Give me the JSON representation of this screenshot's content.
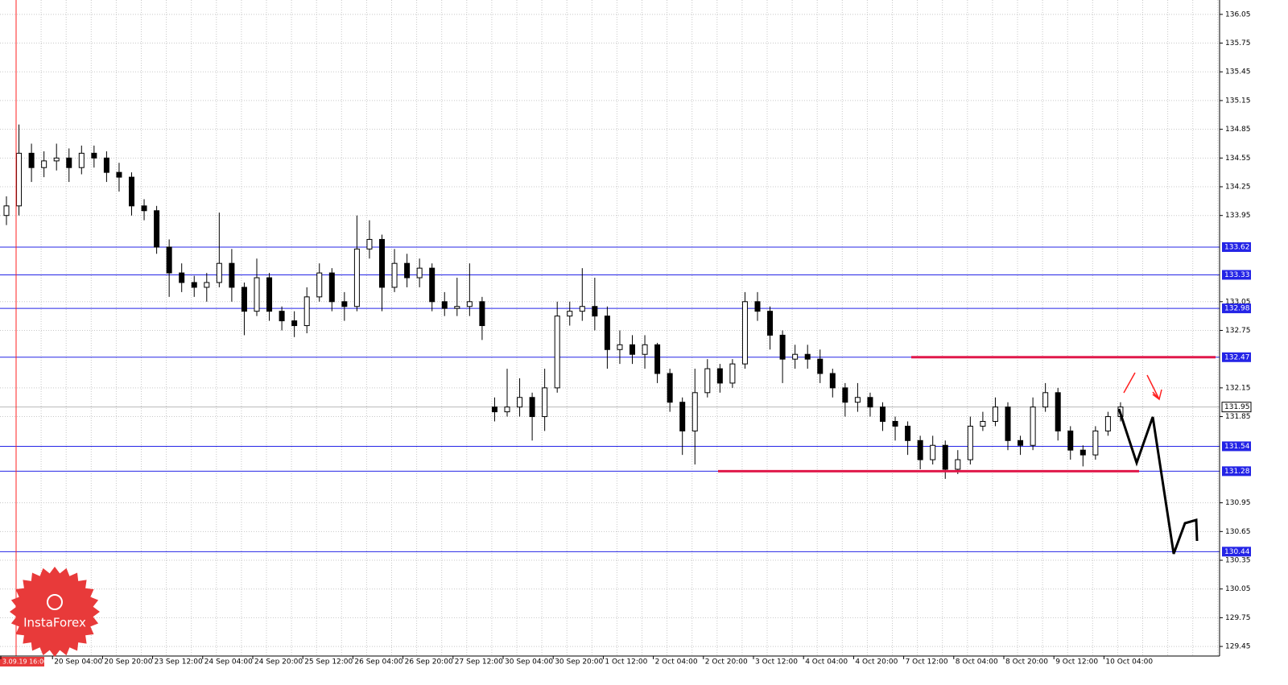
{
  "chart_data": {
    "type": "candlestick",
    "open": [
      133.95,
      134.05,
      134.6,
      134.45,
      134.52,
      134.55,
      134.45,
      134.6,
      134.55,
      134.4,
      134.35,
      134.05,
      134.0,
      133.62,
      133.35,
      133.25,
      133.2,
      133.25,
      133.45,
      133.2,
      132.95,
      133.3,
      132.95,
      132.85,
      132.8,
      133.1,
      133.35,
      133.05,
      133.0,
      133.6,
      133.7,
      133.2,
      133.45,
      133.3,
      133.4,
      133.05,
      132.98,
      133.0,
      133.05,
      131.95,
      131.9,
      131.95,
      132.05,
      131.85,
      132.15,
      132.9,
      132.95,
      133.0,
      132.9,
      132.55,
      132.6,
      132.5,
      132.6,
      132.3,
      132.0,
      131.7,
      132.1,
      132.35,
      132.2,
      132.4,
      133.05,
      132.95,
      132.7,
      132.45,
      132.5,
      132.45,
      132.3,
      132.15,
      132.0,
      132.05,
      131.95,
      131.8,
      131.75,
      131.6,
      131.4,
      131.55,
      131.3,
      131.4,
      131.75,
      131.8,
      131.95,
      131.6,
      131.55,
      131.95,
      132.1,
      131.7,
      131.5,
      131.45,
      131.7,
      131.85
    ],
    "high": [
      134.15,
      134.9,
      134.7,
      134.62,
      134.7,
      134.65,
      134.68,
      134.68,
      134.62,
      134.5,
      134.4,
      134.12,
      134.05,
      133.7,
      133.45,
      133.32,
      133.35,
      133.98,
      133.6,
      133.25,
      133.5,
      133.35,
      133.0,
      132.95,
      133.2,
      133.45,
      133.4,
      133.15,
      133.95,
      133.9,
      133.75,
      133.6,
      133.55,
      133.5,
      133.45,
      133.15,
      133.3,
      133.45,
      133.1,
      132.05,
      132.35,
      132.25,
      132.1,
      132.35,
      133.05,
      133.05,
      133.4,
      133.3,
      133.0,
      132.75,
      132.7,
      132.7,
      132.62,
      132.35,
      132.05,
      132.35,
      132.45,
      132.4,
      132.45,
      133.15,
      133.15,
      133.0,
      132.75,
      132.6,
      132.6,
      132.55,
      132.35,
      132.2,
      132.2,
      132.1,
      132.0,
      131.85,
      131.8,
      131.65,
      131.65,
      131.6,
      131.5,
      131.85,
      131.9,
      132.05,
      132.0,
      131.65,
      132.05,
      132.2,
      132.15,
      131.75,
      131.55,
      131.75,
      131.9,
      132.0
    ],
    "low": [
      133.85,
      133.95,
      134.3,
      134.35,
      134.42,
      134.3,
      134.38,
      134.45,
      134.3,
      134.2,
      133.95,
      133.9,
      133.55,
      133.1,
      133.15,
      133.1,
      133.05,
      133.2,
      133.05,
      132.7,
      132.9,
      132.85,
      132.75,
      132.68,
      132.72,
      133.05,
      132.95,
      132.85,
      132.95,
      133.5,
      132.95,
      133.15,
      133.2,
      133.2,
      132.95,
      132.9,
      132.9,
      132.9,
      132.65,
      131.8,
      131.85,
      131.85,
      131.6,
      131.7,
      132.1,
      132.8,
      132.85,
      132.75,
      132.35,
      132.4,
      132.4,
      132.35,
      132.2,
      131.9,
      131.45,
      131.35,
      132.05,
      132.1,
      132.15,
      132.35,
      132.85,
      132.55,
      132.2,
      132.35,
      132.35,
      132.2,
      132.05,
      131.85,
      131.9,
      131.85,
      131.7,
      131.6,
      131.45,
      131.3,
      131.35,
      131.2,
      131.25,
      131.35,
      131.7,
      131.75,
      131.5,
      131.45,
      131.5,
      131.9,
      131.6,
      131.4,
      131.33,
      131.4,
      131.65,
      131.8
    ],
    "close": [
      134.05,
      134.6,
      134.45,
      134.52,
      134.55,
      134.45,
      134.6,
      134.55,
      134.4,
      134.35,
      134.05,
      134.0,
      133.62,
      133.35,
      133.25,
      133.2,
      133.25,
      133.45,
      133.2,
      132.95,
      133.3,
      132.95,
      132.85,
      132.8,
      133.1,
      133.35,
      133.05,
      133.0,
      133.6,
      133.7,
      133.2,
      133.45,
      133.3,
      133.4,
      133.05,
      132.98,
      133.0,
      133.05,
      132.8,
      131.9,
      131.95,
      132.05,
      131.85,
      132.15,
      132.9,
      132.95,
      133.0,
      132.9,
      132.55,
      132.6,
      132.5,
      132.6,
      132.3,
      132.0,
      131.7,
      132.1,
      132.35,
      132.2,
      132.4,
      133.05,
      132.95,
      132.7,
      132.45,
      132.5,
      132.45,
      132.3,
      132.15,
      132.0,
      132.05,
      131.95,
      131.8,
      131.75,
      131.6,
      131.4,
      131.55,
      131.3,
      131.4,
      131.75,
      131.8,
      131.95,
      131.6,
      131.55,
      131.95,
      132.1,
      131.7,
      131.5,
      131.45,
      131.7,
      131.85,
      131.95
    ],
    "x_labels": [
      "3.09.19 16:00",
      "20 Sep 04:00",
      "20 Sep 20:00",
      "23 Sep 12:00",
      "24 Sep 04:00",
      "24 Sep 20:00",
      "25 Sep 12:00",
      "26 Sep 04:00",
      "26 Sep 20:00",
      "27 Sep 12:00",
      "30 Sep 04:00",
      "30 Sep 20:00",
      "1 Oct 12:00",
      "2 Oct 04:00",
      "2 Oct 20:00",
      "3 Oct 12:00",
      "4 Oct 04:00",
      "4 Oct 20:00",
      "7 Oct 12:00",
      "8 Oct 04:00",
      "8 Oct 20:00",
      "9 Oct 12:00",
      "10 Oct 04:00"
    ],
    "ylim": [
      129.35,
      136.2
    ],
    "yticks": [
      136.05,
      135.75,
      135.45,
      135.15,
      134.85,
      134.55,
      134.25,
      133.95,
      133.05,
      132.75,
      132.15,
      131.85,
      130.95,
      130.65,
      130.35,
      130.05,
      129.75,
      129.45
    ],
    "levels": [
      133.62,
      133.33,
      132.98,
      132.47,
      131.54,
      131.28,
      130.44
    ],
    "level_color": "#2424e6",
    "current_price": 131.95,
    "watermark": "InstaForex",
    "grid": true
  }
}
